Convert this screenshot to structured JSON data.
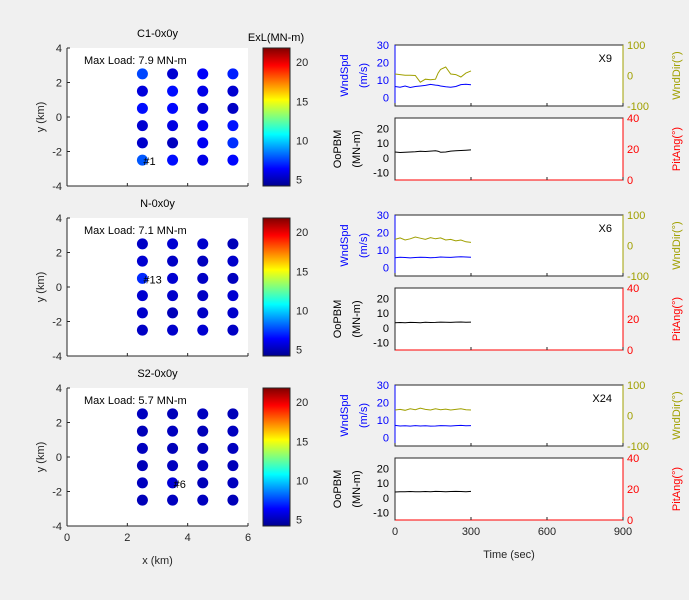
{
  "colors": {
    "windspeed": "#0000ff",
    "winddir": "#a0a000",
    "load": "#000000",
    "pitch": "#ff0000",
    "background": "#f0f0f0"
  },
  "colorbar": {
    "label": "ExL(MN-m)",
    "clim": [
      4.2,
      21.8
    ],
    "ticks": [
      5,
      10,
      15,
      20
    ],
    "colormap": "jet"
  },
  "scatter_common": {
    "xlabel": "x (km)",
    "ylabel": "y (km)",
    "xlim": [
      0,
      6
    ],
    "ylim": [
      -4,
      4
    ],
    "xticks": [
      0,
      2,
      4,
      6
    ],
    "yticks": [
      -4,
      -2,
      0,
      2,
      4
    ]
  },
  "ts_common": {
    "xlabel": "Time (sec)",
    "xlim": [
      0,
      900
    ],
    "xticks": [
      0,
      300,
      600,
      900
    ],
    "wndspd_label": [
      "WndSpd",
      "(m/s)"
    ],
    "wnddir_label": "WndDir(°)",
    "oopbm_label": [
      "OoPBM",
      "(MN-m)"
    ],
    "pitang_label": "PitAng(°)",
    "wndspd_ylim": [
      -5,
      30
    ],
    "wndspd_ticks": [
      0,
      10,
      20,
      30
    ],
    "wnddir_ylim": [
      -100,
      100
    ],
    "wnddir_ticks": [
      -100,
      0,
      100
    ],
    "oopbm_ylim": [
      -15,
      27
    ],
    "oopbm_ticks": [
      -10,
      0,
      10,
      20
    ],
    "pitang_ylim": [
      0,
      40
    ],
    "pitang_ticks": [
      0,
      20,
      40
    ]
  },
  "chart_data": [
    {
      "type": "scatter",
      "title": "C1-0x0y",
      "annotation": "Max Load: 7.9 MN-m",
      "highlight_label": "#1",
      "highlight": [
        2.5,
        -2.5
      ],
      "x": [
        2.5,
        3.5,
        4.5,
        5.5
      ],
      "y": [
        2.5,
        1.5,
        0.5,
        -0.5,
        -1.5,
        -2.5
      ],
      "values": [
        [
          7.6,
          5.6,
          6.3,
          6.9
        ],
        [
          5.8,
          6.6,
          6.0,
          5.6
        ],
        [
          6.6,
          6.5,
          5.7,
          5.4
        ],
        [
          5.6,
          5.9,
          6.2,
          6.7
        ],
        [
          5.5,
          5.3,
          6.2,
          7.2
        ],
        [
          7.9,
          6.6,
          6.0,
          6.5
        ]
      ],
      "ts": {
        "label": "X9",
        "t": [
          0,
          20,
          40,
          60,
          80,
          100,
          120,
          140,
          160,
          170,
          180,
          200,
          220,
          240,
          260,
          280,
          300
        ],
        "wndspd": [
          6.2,
          5.8,
          6.5,
          5.6,
          6.2,
          6.5,
          6.8,
          7.4,
          7.0,
          6.8,
          6.5,
          6.0,
          5.8,
          6.2,
          7.3,
          7.5,
          7.2
        ],
        "wnddir": [
          5,
          3,
          1,
          1,
          0,
          -22,
          -12,
          -14,
          -12,
          8,
          20,
          28,
          5,
          3,
          -5,
          8,
          15
        ],
        "oopbm": [
          4.0,
          3.6,
          3.8,
          4.0,
          4.2,
          4.5,
          4.3,
          4.6,
          4.8,
          4.5,
          3.8,
          4.0,
          4.6,
          4.8,
          5.0,
          5.2,
          5.4
        ]
      }
    },
    {
      "type": "scatter",
      "title": "N-0x0y",
      "annotation": "Max Load: 7.1 MN-m",
      "highlight_label": "#13",
      "highlight": [
        2.5,
        0.5
      ],
      "x": [
        2.5,
        3.5,
        4.5,
        5.5
      ],
      "y": [
        2.5,
        1.5,
        0.5,
        -0.5,
        -1.5,
        -2.5
      ],
      "values": [
        [
          5.4,
          5.6,
          5.5,
          5.2
        ],
        [
          5.6,
          5.4,
          5.3,
          5.5
        ],
        [
          7.1,
          5.6,
          5.4,
          5.3
        ],
        [
          5.6,
          5.5,
          5.4,
          5.6
        ],
        [
          5.5,
          5.2,
          5.4,
          5.5
        ],
        [
          5.4,
          5.5,
          5.6,
          5.4
        ]
      ],
      "ts": {
        "label": "X6",
        "t": [
          0,
          20,
          40,
          60,
          80,
          100,
          120,
          140,
          160,
          180,
          200,
          220,
          240,
          260,
          280,
          300
        ],
        "wndspd": [
          5.5,
          5.8,
          5.6,
          5.4,
          5.6,
          5.8,
          5.7,
          5.5,
          5.6,
          5.9,
          5.8,
          5.7,
          5.9,
          6.0,
          5.9,
          5.8
        ],
        "wnddir": [
          20,
          25,
          18,
          22,
          28,
          24,
          20,
          26,
          22,
          25,
          18,
          20,
          15,
          18,
          12,
          10
        ],
        "oopbm": [
          3.5,
          3.6,
          3.4,
          3.7,
          3.6,
          3.5,
          3.8,
          3.6,
          3.7,
          3.9,
          3.8,
          3.7,
          3.9,
          4.0,
          3.8,
          3.9
        ]
      }
    },
    {
      "type": "scatter",
      "title": "S2-0x0y",
      "annotation": "Max Load: 5.7 MN-m",
      "highlight_label": "#6",
      "highlight": [
        3.5,
        -1.5
      ],
      "x": [
        2.5,
        3.5,
        4.5,
        5.5
      ],
      "y": [
        2.5,
        1.5,
        0.5,
        -0.5,
        -1.5,
        -2.5
      ],
      "values": [
        [
          5.3,
          5.2,
          5.3,
          5.2
        ],
        [
          5.2,
          5.3,
          5.2,
          5.3
        ],
        [
          5.3,
          5.2,
          5.2,
          5.3
        ],
        [
          5.2,
          5.3,
          5.3,
          5.2
        ],
        [
          5.3,
          5.7,
          5.2,
          5.3
        ],
        [
          5.2,
          5.3,
          5.3,
          5.2
        ]
      ],
      "ts": {
        "label": "X24",
        "t": [
          0,
          20,
          40,
          60,
          80,
          100,
          120,
          140,
          160,
          180,
          200,
          220,
          240,
          260,
          280,
          300
        ],
        "wndspd": [
          6.8,
          6.5,
          6.6,
          6.4,
          6.7,
          6.5,
          6.6,
          6.4,
          6.5,
          6.7,
          6.6,
          6.5,
          6.7,
          6.8,
          6.6,
          6.7
        ],
        "wnddir": [
          18,
          20,
          17,
          22,
          19,
          24,
          20,
          18,
          22,
          19,
          21,
          18,
          20,
          22,
          19,
          18
        ],
        "oopbm": [
          4.0,
          4.2,
          4.1,
          4.3,
          4.2,
          4.1,
          4.3,
          4.2,
          4.4,
          4.3,
          4.2,
          4.3,
          4.4,
          4.3,
          4.2,
          4.4
        ]
      }
    }
  ]
}
